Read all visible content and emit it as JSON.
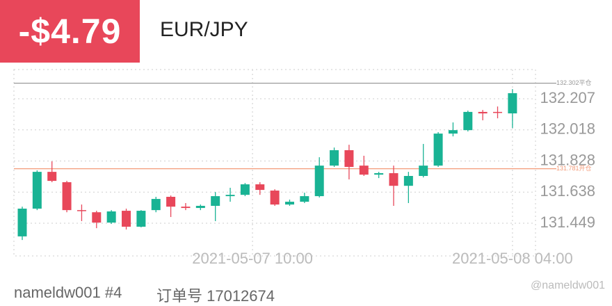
{
  "pnl": "-$4.79",
  "symbol": "EUR/JPY",
  "account": "nameldw001 #4",
  "order": "订单号 17012674",
  "watermark": "@nameldw001",
  "chart_data": {
    "type": "candlestick",
    "ylim": [
      131.25,
      132.385
    ],
    "yticks": [
      131.449,
      131.638,
      131.828,
      132.018,
      132.207
    ],
    "xticks": [
      {
        "value": 15.5,
        "label": "2021-05-07 10:00"
      },
      {
        "value": 33,
        "label": "2021-05-08 04:00"
      }
    ],
    "grid": true,
    "up_color": "#19b394",
    "down_color": "#e8475a",
    "reference_lines": [
      {
        "value": 132.302,
        "label": "132.302平仓",
        "color": "#999999"
      },
      {
        "value": 131.781,
        "label": "131.781开仓",
        "color": "#f39a78"
      }
    ],
    "series": [
      {
        "open": [
          131.369,
          131.538,
          131.762,
          131.699,
          131.529,
          131.516,
          131.453,
          131.525,
          131.428,
          131.529,
          131.61,
          131.55,
          131.542,
          131.555,
          131.614,
          131.622,
          131.686,
          131.648,
          131.563,
          131.58,
          131.614,
          131.8,
          131.894,
          131.8,
          131.745,
          131.754,
          131.677,
          131.737,
          131.8,
          131.995,
          132.016,
          132.127,
          132.127,
          132.118
        ],
        "high": [
          131.55,
          131.771,
          131.826,
          131.707,
          131.563,
          131.525,
          131.529,
          131.538,
          131.529,
          131.61,
          131.618,
          131.572,
          131.563,
          131.639,
          131.665,
          131.694,
          131.699,
          131.656,
          131.593,
          131.635,
          131.851,
          131.91,
          131.927,
          131.86,
          131.762,
          131.8,
          131.762,
          131.932,
          132.004,
          132.063,
          132.135,
          132.139,
          132.16,
          132.266
        ],
        "low": [
          131.347,
          131.529,
          131.699,
          131.516,
          131.462,
          131.419,
          131.445,
          131.411,
          131.424,
          131.516,
          131.487,
          131.529,
          131.529,
          131.462,
          131.58,
          131.614,
          131.622,
          131.555,
          131.555,
          131.572,
          131.606,
          131.792,
          131.716,
          131.737,
          131.724,
          131.555,
          131.572,
          131.728,
          131.792,
          131.978,
          132.008,
          132.076,
          132.088,
          132.029
        ],
        "close": [
          131.538,
          131.762,
          131.707,
          131.529,
          131.525,
          131.453,
          131.521,
          131.428,
          131.525,
          131.597,
          131.55,
          131.542,
          131.555,
          131.614,
          131.622,
          131.686,
          131.652,
          131.563,
          131.58,
          131.614,
          131.8,
          131.894,
          131.792,
          131.745,
          131.754,
          131.677,
          131.737,
          131.8,
          131.995,
          132.016,
          132.127,
          132.118,
          132.122,
          132.241
        ]
      }
    ]
  }
}
